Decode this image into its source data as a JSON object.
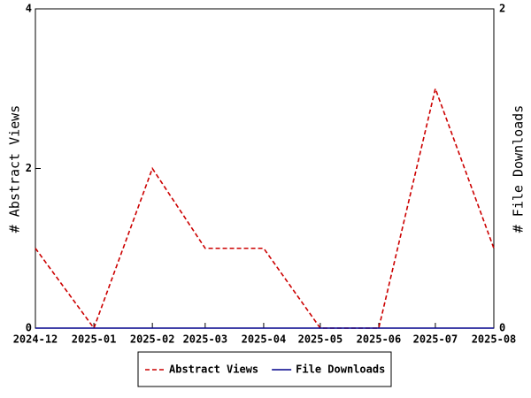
{
  "chart_data": {
    "type": "line",
    "x": [
      "2024-12",
      "2025-01",
      "2025-02",
      "2025-03",
      "2025-04",
      "2025-05",
      "2025-06",
      "2025-07",
      "2025-08"
    ],
    "series": [
      {
        "name": "Abstract Views",
        "color": "#cc0000",
        "dash": true,
        "values": [
          1,
          0,
          2,
          1,
          1,
          0,
          0,
          3,
          1
        ]
      },
      {
        "name": "File Downloads",
        "color": "#00008b",
        "axis": "y2",
        "values": [
          0,
          0,
          0,
          0,
          0,
          0,
          0,
          0,
          0
        ]
      }
    ],
    "ylabel": "# Abstract Views",
    "y2label": "# File Downloads",
    "ylim": [
      0,
      4
    ],
    "yticks": [
      0,
      2,
      4
    ],
    "y2lim": [
      0,
      2
    ],
    "y2ticks": [
      0,
      2
    ],
    "legend": "bottom"
  }
}
